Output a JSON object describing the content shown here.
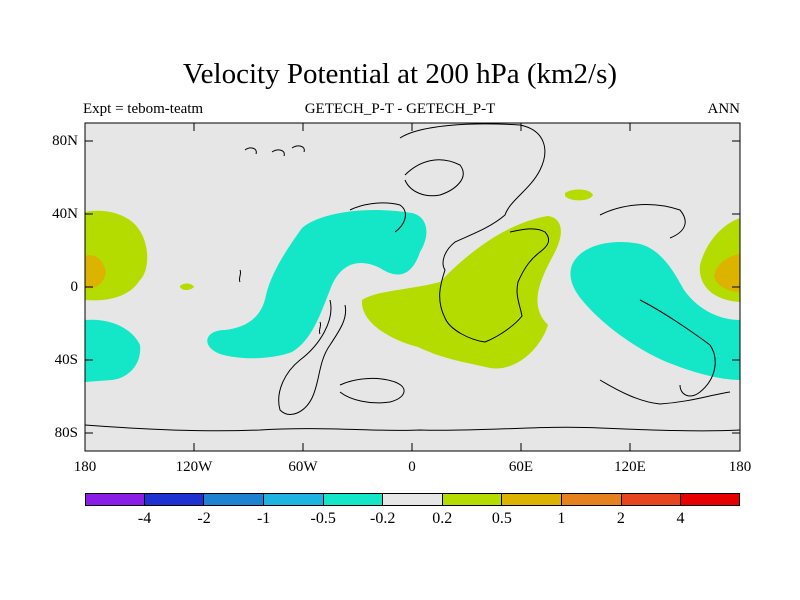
{
  "title": "Velocity Potential at 200 hPa (km2/s)",
  "subtitle": {
    "left": "Expt = tebom-teatm",
    "center": "GETECH_P-T - GETECH_P-T",
    "right": "ANN"
  },
  "axes": {
    "y_ticks": [
      "80N",
      "40N",
      "0",
      "40S",
      "80S"
    ],
    "x_ticks": [
      "180",
      "120W",
      "60W",
      "0",
      "60E",
      "120E",
      "180"
    ]
  },
  "colorbar": {
    "colors": [
      "#8a1ee6",
      "#1e32d2",
      "#1e82d2",
      "#1eb4e1",
      "#14e6c8",
      "#e6e6e6",
      "#b4dc00",
      "#dcb400",
      "#e6821e",
      "#e6461e",
      "#e60000"
    ],
    "labels": [
      "-4",
      "-2",
      "-1",
      "-0.5",
      "-0.2",
      "0.2",
      "0.5",
      "1",
      "2",
      "4"
    ]
  },
  "colors": {
    "background": "#e6e6e6",
    "positive_low": "#b4dc00",
    "positive_mid": "#dcb400",
    "negative_low": "#14e6c8"
  }
}
